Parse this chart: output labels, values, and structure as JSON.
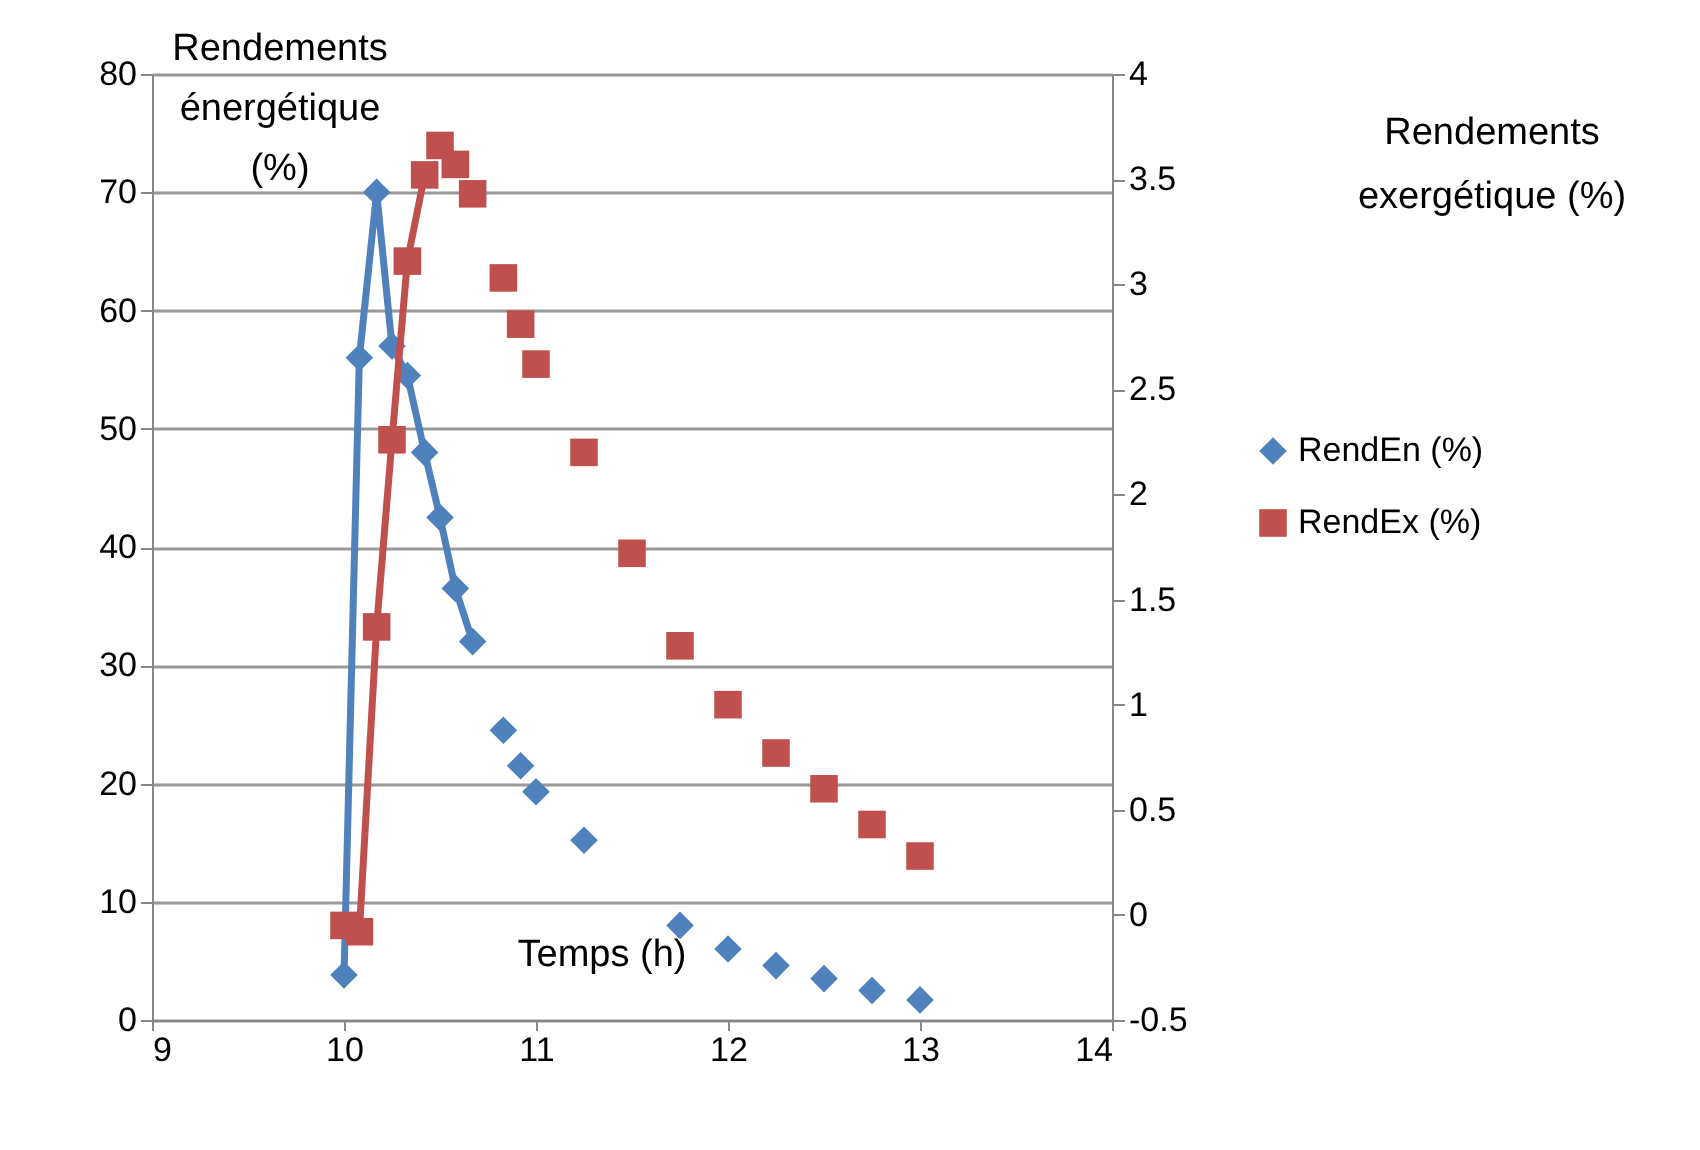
{
  "chart_data": {
    "type": "line",
    "xlabel": "Temps (h)",
    "ylabel": "Rendements énergétique (%)",
    "y2label": "Rendements exergétique (%)",
    "series": [
      {
        "name": "RendEn (%)",
        "color": "#4f81bd",
        "marker": "diamond",
        "x": [
          10,
          10.08,
          10.17,
          10.25,
          10.33,
          10.42,
          10.5,
          10.58,
          10.67,
          10.75,
          10.83,
          10.875,
          10.92,
          10.96,
          11,
          11.125,
          11.25,
          11.5,
          11.75,
          11.875,
          12,
          12.125,
          12.25,
          12.375,
          12.5,
          12.625,
          12.75,
          12.875,
          13
        ],
        "values": [
          3.8,
          56,
          70,
          57,
          54.5,
          48,
          42.5,
          36.5,
          32,
          null,
          24.5,
          null,
          21.5,
          null,
          19.3,
          null,
          15.2,
          null,
          8,
          null,
          6,
          null,
          4.6,
          null,
          3.5,
          null,
          2.5,
          null,
          1.7
        ]
      },
      {
        "name": "RendEx (%)",
        "color": "#c0504d",
        "marker": "square",
        "axis": "y2",
        "x": [
          10,
          10.08,
          10.17,
          10.25,
          10.33,
          10.42,
          10.46,
          10.5,
          10.54,
          10.58,
          10.625,
          10.67,
          10.75,
          10.83,
          10.875,
          10.92,
          10.96,
          11,
          11.125,
          11.25,
          11.375,
          11.5,
          11.625,
          11.75,
          11.875,
          12,
          12.125,
          12.25,
          12.375,
          12.5,
          12.625,
          12.75,
          12.875,
          13
        ],
        "values": [
          -0.05,
          -0.08,
          1.37,
          2.26,
          3.11,
          3.52,
          null,
          3.66,
          null,
          3.57,
          null,
          3.43,
          null,
          3.03,
          null,
          2.81,
          null,
          2.62,
          null,
          2.2,
          null,
          1.72,
          null,
          1.28,
          null,
          1.0,
          null,
          0.77,
          null,
          0.6,
          null,
          0.43,
          null,
          0.28
        ]
      }
    ],
    "xlim": [
      9,
      14
    ],
    "xticks": [
      9,
      10,
      11,
      12,
      13,
      14
    ],
    "ylim": [
      0,
      80
    ],
    "yticks": [
      0,
      10,
      20,
      30,
      40,
      50,
      60,
      70,
      80
    ],
    "y2lim": [
      -0.5,
      4
    ],
    "y2ticks": [
      -0.5,
      0,
      0.5,
      1,
      1.5,
      2,
      2.5,
      3,
      3.5,
      4
    ],
    "grid": "y",
    "legend": "right",
    "line_style": "solid"
  }
}
